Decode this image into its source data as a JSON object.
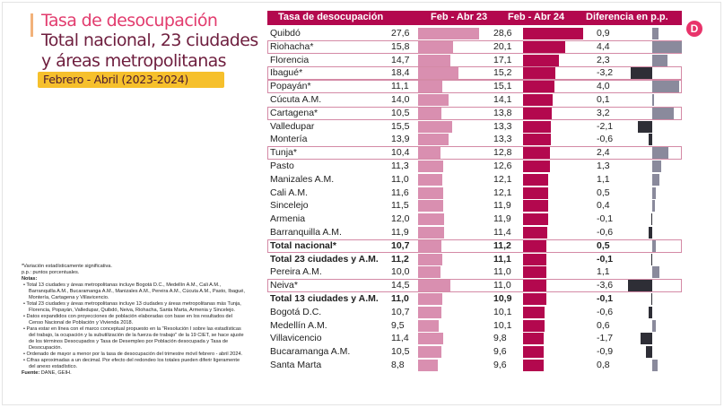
{
  "title": "Tasa de desocupación",
  "subtitle": "Total nacional, 23 ciudades y áreas metropolitanas",
  "period": "Febrero - Abril (2023-2024)",
  "logo": "D",
  "notes": {
    "sig": "*Variación estadísticamente significativa.",
    "pp": "p.p.: puntos porcentuales.",
    "heading": "Notas:",
    "items": [
      "• Total 13 ciudades y áreas metropolitanas incluye Bogotá D.C., Medellín A.M., Cali A.M., Barranquilla A.M., Bucaramanga A.M., Manizales A.M., Pereira A.M., Cúcuta A.M., Pasto, Ibagué, Montería, Cartagena y Villavicencio.",
      "• Total 23 ciudades y áreas metropolitanas incluye 13 ciudades y áreas metropolitanas más Tunja, Florencia, Popayán, Valledupar, Quibdó, Neiva, Riohacha, Santa Marta, Armenia y Sincelejo.",
      "• Datos expandidos con proyecciones de población elaboradas con base en los resultados del Censo Nacional de Población y Vivienda 2018.",
      "• Para estar en línea con el marco conceptual propuesto en la \"Resolución I sobre las estadísticas del trabajo, la ocupación y la subutilización de la fuerza de trabajo\" de la 19 CIET, se hace ajuste de los términos Desocupados y Tasa de Desempleo por Población desocupada y Tasa de Desocupación.",
      "• Ordenado de mayor a menor por la tasa de desocupación del trimestre móvil febrero - abril 2024.",
      "• Cifras aproximadas a un decimal. Por efecto del redondeo los totales pueden diferir ligeramente del anexo estadístico."
    ],
    "source_label": "Fuente:",
    "source": "DANE, GEIH."
  },
  "chart_data": {
    "type": "table",
    "headers": [
      "Tasa de desocupación",
      "Feb - Abr 23",
      "Feb - Abr 24",
      "Diferencia en p.p."
    ],
    "colors": {
      "header": "#b3084e",
      "bar23": "#d98fb0",
      "bar24": "#b3084e",
      "diff_pos": "#8a8a9c",
      "diff_neg": "#2e2e36"
    },
    "rows": [
      {
        "name": "Quibdó",
        "v23": "27,6",
        "v24": "28,6",
        "diff": "0,9",
        "hl": false,
        "bold": false
      },
      {
        "name": "Riohacha*",
        "v23": "15,8",
        "v24": "20,1",
        "diff": "4,4",
        "hl": true,
        "bold": false
      },
      {
        "name": "Florencia",
        "v23": "14,7",
        "v24": "17,1",
        "diff": "2,3",
        "hl": false,
        "bold": false
      },
      {
        "name": "Ibagué*",
        "v23": "18,4",
        "v24": "15,2",
        "diff": "-3,2",
        "hl": true,
        "bold": false
      },
      {
        "name": "Popayán*",
        "v23": "11,1",
        "v24": "15,1",
        "diff": "4,0",
        "hl": true,
        "bold": false
      },
      {
        "name": "Cúcuta A.M.",
        "v23": "14,0",
        "v24": "14,1",
        "diff": "0,1",
        "hl": false,
        "bold": false
      },
      {
        "name": "Cartagena*",
        "v23": "10,5",
        "v24": "13,8",
        "diff": "3,2",
        "hl": true,
        "bold": false
      },
      {
        "name": "Valledupar",
        "v23": "15,5",
        "v24": "13,3",
        "diff": "-2,1",
        "hl": false,
        "bold": false
      },
      {
        "name": "Montería",
        "v23": "13,9",
        "v24": "13,3",
        "diff": "-0,6",
        "hl": false,
        "bold": false
      },
      {
        "name": "Tunja*",
        "v23": "10,4",
        "v24": "12,8",
        "diff": "2,4",
        "hl": true,
        "bold": false
      },
      {
        "name": "Pasto",
        "v23": "11,3",
        "v24": "12,6",
        "diff": "1,3",
        "hl": false,
        "bold": false
      },
      {
        "name": "Manizales A.M.",
        "v23": "11,0",
        "v24": "12,1",
        "diff": "1,1",
        "hl": false,
        "bold": false
      },
      {
        "name": "Cali A.M.",
        "v23": "11,6",
        "v24": "12,1",
        "diff": "0,5",
        "hl": false,
        "bold": false
      },
      {
        "name": "Sincelejo",
        "v23": "11,5",
        "v24": "11,9",
        "diff": "0,4",
        "hl": false,
        "bold": false
      },
      {
        "name": "Armenia",
        "v23": "12,0",
        "v24": "11,9",
        "diff": "-0,1",
        "hl": false,
        "bold": false
      },
      {
        "name": "Barranquilla A.M.",
        "v23": "11,9",
        "v24": "11,4",
        "diff": "-0,6",
        "hl": false,
        "bold": false
      },
      {
        "name": "Total nacional*",
        "v23": "10,7",
        "v24": "11,2",
        "diff": "0,5",
        "hl": true,
        "bold": true
      },
      {
        "name": "Total 23 ciudades y A.M.",
        "v23": "11,2",
        "v24": "11,1",
        "diff": "-0,1",
        "hl": false,
        "bold": true
      },
      {
        "name": "Pereira A.M.",
        "v23": "10,0",
        "v24": "11,0",
        "diff": "1,1",
        "hl": false,
        "bold": false
      },
      {
        "name": "Neiva*",
        "v23": "14,5",
        "v24": "11,0",
        "diff": "-3,6",
        "hl": true,
        "bold": false
      },
      {
        "name": "Total 13 ciudades y A.M.",
        "v23": "11,0",
        "v24": "10,9",
        "diff": "-0,1",
        "hl": false,
        "bold": true
      },
      {
        "name": "Bogotá D.C.",
        "v23": "10,7",
        "v24": "10,1",
        "diff": "-0,6",
        "hl": false,
        "bold": false
      },
      {
        "name": "Medellín A.M.",
        "v23": "9,5",
        "v24": "10,1",
        "diff": "0,6",
        "hl": false,
        "bold": false
      },
      {
        "name": "Villavicencio",
        "v23": "11,4",
        "v24": "9,8",
        "diff": "-1,7",
        "hl": false,
        "bold": false
      },
      {
        "name": "Bucaramanga A.M.",
        "v23": "10,5",
        "v24": "9,6",
        "diff": "-0,9",
        "hl": false,
        "bold": false
      },
      {
        "name": "Santa Marta",
        "v23": "8,8",
        "v24": "9,6",
        "diff": "0,8",
        "hl": false,
        "bold": false
      }
    ]
  }
}
